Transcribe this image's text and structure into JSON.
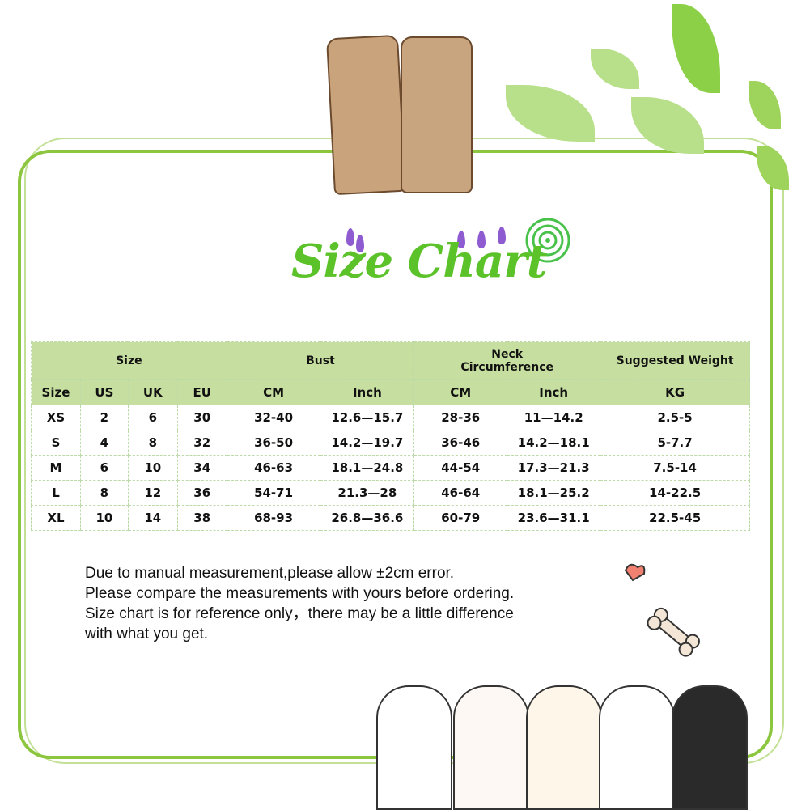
{
  "title": "Size Chart",
  "table": {
    "group_headers": [
      "Size",
      "Bust",
      "Neck Circumference",
      "Suggested Weight"
    ],
    "sub_headers": [
      "Size",
      "US",
      "UK",
      "EU",
      "CM",
      "Inch",
      "CM",
      "Inch",
      "KG"
    ],
    "rows": [
      [
        "XS",
        "2",
        "6",
        "30",
        "32-40",
        "12.6—15.7",
        "28-36",
        "11—14.2",
        "2.5-5"
      ],
      [
        "S",
        "4",
        "8",
        "32",
        "36-50",
        "14.2—19.7",
        "36-46",
        "14.2—18.1",
        "5-7.7"
      ],
      [
        "M",
        "6",
        "10",
        "34",
        "46-63",
        "18.1—24.8",
        "44-54",
        "17.3—21.3",
        "7.5-14"
      ],
      [
        "L",
        "8",
        "12",
        "36",
        "54-71",
        "21.3—28",
        "46-64",
        "18.1—25.2",
        "14-22.5"
      ],
      [
        "XL",
        "10",
        "14",
        "38",
        "68-93",
        "26.8—36.6",
        "60-79",
        "23.6—31.1",
        "22.5-45"
      ]
    ]
  },
  "notes": [
    "Due to manual measurement,please allow ±2cm error.",
    "Please compare the measurements with yours before ordering.",
    "Size chart is for reference only，there may be a little difference",
    "with what you get."
  ],
  "colors": {
    "header_green": "#c6de9f",
    "title_green": "#5cc22a",
    "frame_green": "#8cc63f"
  }
}
